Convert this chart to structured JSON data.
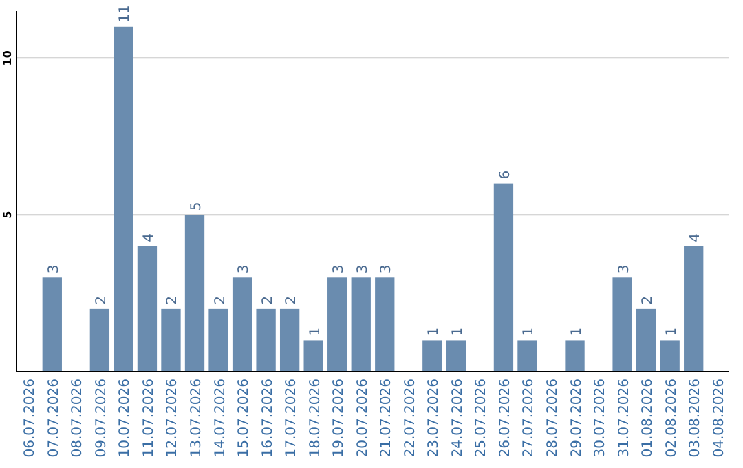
{
  "chart_data": {
    "type": "bar",
    "categories": [
      "06.07.2026",
      "07.07.2026",
      "08.07.2026",
      "09.07.2026",
      "10.07.2026",
      "11.07.2026",
      "12.07.2026",
      "13.07.2026",
      "14.07.2026",
      "15.07.2026",
      "16.07.2026",
      "17.07.2026",
      "18.07.2026",
      "19.07.2026",
      "20.07.2026",
      "21.07.2026",
      "22.07.2026",
      "23.07.2026",
      "24.07.2026",
      "25.07.2026",
      "26.07.2026",
      "27.07.2026",
      "28.07.2026",
      "29.07.2026",
      "30.07.2026",
      "31.07.2026",
      "01.08.2026",
      "02.08.2026",
      "03.08.2026",
      "04.08.2026"
    ],
    "values": [
      null,
      3,
      null,
      2,
      11,
      4,
      2,
      5,
      2,
      3,
      2,
      2,
      1,
      3,
      3,
      3,
      null,
      1,
      1,
      null,
      6,
      1,
      null,
      1,
      null,
      3,
      2,
      1,
      4,
      null
    ],
    "color": "#6a8caf",
    "ylim": [
      0,
      11.5
    ],
    "yticks": [
      5,
      10
    ],
    "grid": "y",
    "data_labels": true
  }
}
